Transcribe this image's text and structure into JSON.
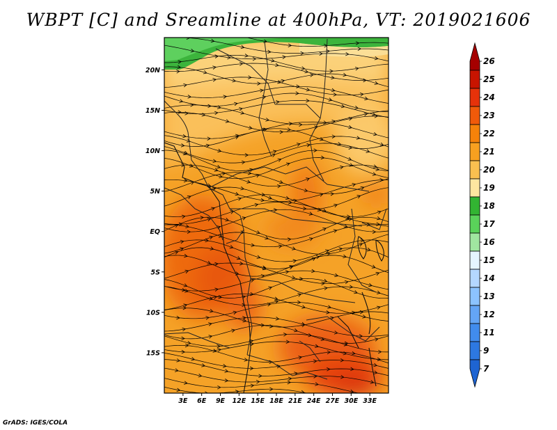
{
  "title": "WBPT [C] and Sreamline at 400hPa, VT: 2019021606",
  "credit": "GrADS: IGES/COLA",
  "map": {
    "lon_range": [
      0,
      36
    ],
    "lat_range": [
      -20,
      24
    ],
    "x_ticks": [
      {
        "value": 3,
        "label": "3E"
      },
      {
        "value": 6,
        "label": "6E"
      },
      {
        "value": 9,
        "label": "9E"
      },
      {
        "value": 12,
        "label": "12E"
      },
      {
        "value": 15,
        "label": "15E"
      },
      {
        "value": 18,
        "label": "18E"
      },
      {
        "value": 21,
        "label": "21E"
      },
      {
        "value": 24,
        "label": "24E"
      },
      {
        "value": 27,
        "label": "27E"
      },
      {
        "value": 30,
        "label": "30E"
      },
      {
        "value": 33,
        "label": "33E"
      }
    ],
    "y_ticks": [
      {
        "value": 20,
        "label": "20N"
      },
      {
        "value": 15,
        "label": "15N"
      },
      {
        "value": 10,
        "label": "10N"
      },
      {
        "value": 5,
        "label": "5N"
      },
      {
        "value": 0,
        "label": "EQ"
      },
      {
        "value": -5,
        "label": "5S"
      },
      {
        "value": -10,
        "label": "10S"
      },
      {
        "value": -15,
        "label": "15S"
      }
    ]
  },
  "colorbar": {
    "labels": [
      "26",
      "25",
      "24",
      "23",
      "22",
      "21",
      "20",
      "19",
      "18",
      "17",
      "16",
      "15",
      "14",
      "13",
      "12",
      "11",
      "9",
      "7"
    ],
    "colors": [
      "#a50000",
      "#c81400",
      "#e6320a",
      "#f05a0a",
      "#f5820a",
      "#f7a020",
      "#fac050",
      "#fde6a0",
      "#32b432",
      "#5ad25a",
      "#a0e6a0",
      "#e6f5ff",
      "#b4d7ff",
      "#8cc3ff",
      "#64a5f5",
      "#418ced",
      "#2d78e1",
      "#1e64d2"
    ]
  }
}
